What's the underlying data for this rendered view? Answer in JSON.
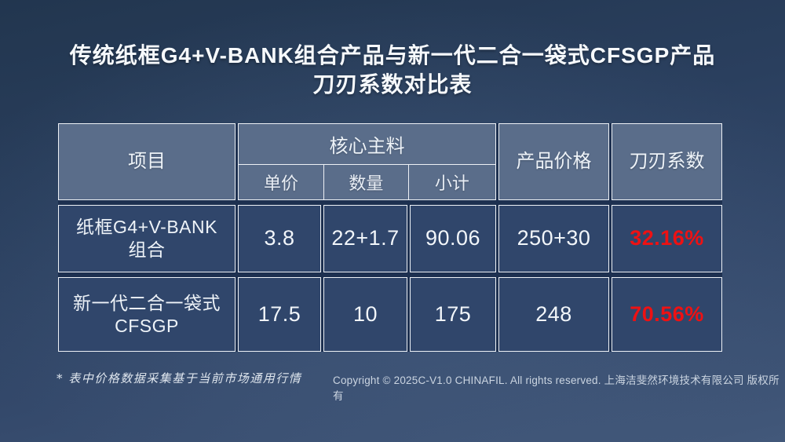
{
  "slide": {
    "title_line1": "传统纸框G4+V-BANK组合产品与新一代二合一袋式CFSGP产品",
    "title_line2": "刀刃系数对比表"
  },
  "table": {
    "col_item": "项目",
    "col_core": "核心主料",
    "col_unit_price": "单价",
    "col_quantity": "数量",
    "col_subtotal": "小计",
    "col_price": "产品价格",
    "col_coefficient": "刀刃系数",
    "rows": [
      {
        "name_line1": "纸框G4+V-BANK",
        "name_line2": "组合",
        "unit_price": "3.8",
        "quantity": "22+1.7",
        "subtotal": "90.06",
        "price": "250+30",
        "coefficient": "32.16%"
      },
      {
        "name_line1": "新一代二合一袋式",
        "name_line2": "CFSGP",
        "unit_price": "17.5",
        "quantity": "10",
        "subtotal": "175",
        "price": "248",
        "coefficient": "70.56%"
      }
    ]
  },
  "footer": {
    "note": "* 表中价格数据采集基于当前市场通用行情",
    "copyright": "Copyright © 2025C-V1.0 CHINAFIL.  All rights reserved. 上海洁斐然环境技术有限公司 版权所有"
  },
  "colors": {
    "accent_red": "#ee1113",
    "header_cell_bg": "#5a6d8a",
    "body_cell_bg": "#30466b",
    "border": "#edf1f6"
  }
}
